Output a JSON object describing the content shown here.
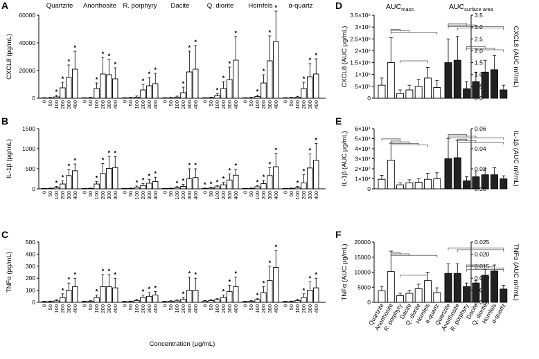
{
  "figure": {
    "concentration_axis_label": "Concentration (μg/mL)",
    "auc_mass_label": "AUC",
    "auc_mass_sub": "mass",
    "auc_area_label": "AUC",
    "auc_area_sub": "surface area"
  },
  "chart_data": [
    {
      "panel": "A",
      "type": "bar",
      "ylabel": "CXCL8 (pg/mL)",
      "ylim": [
        0,
        60000
      ],
      "yticks": [
        "0",
        "20000",
        "40000",
        "60000"
      ],
      "ytick_values": [
        0,
        20000,
        40000,
        60000
      ],
      "concentrations": [
        "0",
        "50",
        "100",
        "200",
        "300",
        "400"
      ],
      "groups": [
        {
          "name": "Quartzite",
          "values": [
            200,
            300,
            1000,
            7500,
            15000,
            21000
          ],
          "errors": [
            200,
            300,
            1000,
            4000,
            9000,
            13000
          ],
          "stars": [
            false,
            false,
            true,
            true,
            true,
            true
          ]
        },
        {
          "name": "Anorthosite",
          "values": [
            200,
            300,
            7000,
            17500,
            17000,
            14000
          ],
          "errors": [
            200,
            300,
            4000,
            12000,
            11000,
            8000
          ],
          "stars": [
            false,
            false,
            true,
            true,
            true,
            true
          ]
        },
        {
          "name": "R. porphyry",
          "values": [
            200,
            300,
            800,
            6000,
            9000,
            10500
          ],
          "errors": [
            200,
            300,
            800,
            4000,
            6000,
            7500
          ],
          "stars": [
            false,
            false,
            false,
            true,
            true,
            true
          ]
        },
        {
          "name": "Dacite",
          "values": [
            200,
            300,
            800,
            4000,
            19000,
            21000
          ],
          "errors": [
            200,
            300,
            700,
            4000,
            15000,
            17000
          ],
          "stars": [
            false,
            false,
            false,
            true,
            true,
            true
          ]
        },
        {
          "name": "Q. diorite",
          "values": [
            200,
            400,
            1800,
            7000,
            13500,
            27500
          ],
          "errors": [
            200,
            300,
            1500,
            5000,
            9000,
            17000
          ],
          "stars": [
            false,
            false,
            true,
            true,
            true,
            true
          ]
        },
        {
          "name": "Hornfels",
          "values": [
            200,
            300,
            1200,
            11000,
            27000,
            41000
          ],
          "errors": [
            200,
            300,
            1000,
            6000,
            18000,
            22000
          ],
          "stars": [
            false,
            false,
            true,
            true,
            true,
            true
          ]
        },
        {
          "name": "α-quartz",
          "values": [
            200,
            300,
            800,
            7000,
            15500,
            17500
          ],
          "errors": [
            200,
            300,
            600,
            4500,
            9500,
            11000
          ],
          "stars": [
            false,
            false,
            false,
            true,
            true,
            true
          ]
        }
      ]
    },
    {
      "panel": "B",
      "type": "bar",
      "ylabel": "IL-1β (pg/mL)",
      "ylim": [
        0,
        1500
      ],
      "yticks": [
        "0",
        "500",
        "1000",
        "1500"
      ],
      "ytick_values": [
        0,
        500,
        1000,
        1500
      ],
      "concentrations": [
        "0",
        "50",
        "100",
        "200",
        "300",
        "400"
      ],
      "groups": [
        {
          "name": "Quartzite",
          "values": [
            5,
            10,
            30,
            120,
            330,
            450
          ],
          "errors": [
            5,
            10,
            30,
            80,
            150,
            170
          ],
          "stars": [
            false,
            false,
            true,
            true,
            true,
            true
          ]
        },
        {
          "name": "Anorthosite",
          "values": [
            5,
            10,
            120,
            380,
            510,
            530
          ],
          "errors": [
            5,
            10,
            60,
            250,
            300,
            270
          ],
          "stars": [
            false,
            false,
            true,
            true,
            true,
            true
          ]
        },
        {
          "name": "R. porphyry",
          "values": [
            5,
            10,
            40,
            80,
            140,
            180
          ],
          "errors": [
            5,
            10,
            30,
            50,
            90,
            110
          ],
          "stars": [
            false,
            false,
            true,
            true,
            true,
            true
          ]
        },
        {
          "name": "Dacite",
          "values": [
            5,
            10,
            30,
            60,
            250,
            280
          ],
          "errors": [
            5,
            10,
            25,
            50,
            250,
            220
          ],
          "stars": [
            false,
            false,
            true,
            true,
            true,
            true
          ]
        },
        {
          "name": "Q. diorite",
          "values": [
            10,
            20,
            50,
            100,
            220,
            340
          ],
          "errors": [
            10,
            15,
            30,
            60,
            150,
            150
          ],
          "stars": [
            true,
            true,
            true,
            true,
            true,
            true
          ]
        },
        {
          "name": "Hornfels",
          "values": [
            5,
            10,
            50,
            130,
            330,
            550
          ],
          "errors": [
            5,
            10,
            30,
            80,
            200,
            330
          ],
          "stars": [
            false,
            false,
            true,
            true,
            true,
            true
          ]
        },
        {
          "name": "α-quartz",
          "values": [
            5,
            10,
            30,
            150,
            520,
            710
          ],
          "errors": [
            5,
            10,
            30,
            200,
            350,
            420
          ],
          "stars": [
            false,
            false,
            true,
            true,
            true,
            true
          ]
        }
      ]
    },
    {
      "panel": "C",
      "type": "bar",
      "ylabel": "TNFα (pg/mL)",
      "ylim": [
        0,
        500
      ],
      "yticks": [
        "0",
        "100",
        "200",
        "300",
        "400",
        "500"
      ],
      "ytick_values": [
        0,
        100,
        200,
        300,
        400,
        500
      ],
      "concentrations": [
        "0",
        "50",
        "100",
        "200",
        "300",
        "400"
      ],
      "groups": [
        {
          "name": "Quartzite",
          "values": [
            5,
            6,
            12,
            40,
            100,
            130
          ],
          "errors": [
            3,
            4,
            10,
            30,
            60,
            70
          ],
          "stars": [
            false,
            false,
            false,
            true,
            true,
            true
          ]
        },
        {
          "name": "Anorthosite",
          "values": [
            6,
            8,
            40,
            130,
            130,
            120
          ],
          "errors": [
            4,
            6,
            20,
            100,
            100,
            80
          ],
          "stars": [
            false,
            false,
            true,
            true,
            true,
            true
          ]
        },
        {
          "name": "R. porphyry",
          "values": [
            5,
            6,
            15,
            40,
            50,
            60
          ],
          "errors": [
            3,
            4,
            10,
            20,
            30,
            30
          ],
          "stars": [
            false,
            false,
            false,
            true,
            true,
            true
          ]
        },
        {
          "name": "Dacite",
          "values": [
            5,
            8,
            12,
            25,
            100,
            100
          ],
          "errors": [
            3,
            5,
            8,
            15,
            110,
            100
          ],
          "stars": [
            false,
            false,
            false,
            true,
            true,
            true
          ]
        },
        {
          "name": "Q. diorite",
          "values": [
            10,
            15,
            20,
            40,
            90,
            130
          ],
          "errors": [
            5,
            8,
            10,
            20,
            50,
            80
          ],
          "stars": [
            false,
            false,
            false,
            true,
            true,
            true
          ]
        },
        {
          "name": "Hornfels",
          "values": [
            5,
            8,
            20,
            80,
            180,
            290
          ],
          "errors": [
            3,
            6,
            10,
            50,
            120,
            140
          ],
          "stars": [
            false,
            false,
            true,
            true,
            true,
            true
          ]
        },
        {
          "name": "α-quartz",
          "values": [
            5,
            6,
            15,
            40,
            100,
            120
          ],
          "errors": [
            3,
            4,
            10,
            30,
            70,
            80
          ],
          "stars": [
            false,
            false,
            false,
            true,
            true,
            true
          ]
        }
      ]
    },
    {
      "panel": "D",
      "type": "bar",
      "ylabel_left": "CXCL8 (AUC μg/mL)",
      "ylabel_right": "CXCL8 (AUC m²/mL)",
      "ylim_left": [
        0,
        3500000
      ],
      "ylim_right": [
        0,
        3.5
      ],
      "yticks_left": [
        "0",
        "5×10⁵",
        "1×10⁶",
        "1.5×10⁶",
        "2×10⁶",
        "2.5×10⁶",
        "3×10⁶",
        "3.5×10⁶"
      ],
      "ytick_values_left": [
        0,
        500000,
        1000000,
        1500000,
        2000000,
        2500000,
        3000000,
        3500000
      ],
      "yticks_right": [
        "0.0",
        "0.5",
        "1.0",
        "1.5",
        "2.0",
        "2.5",
        "3.0",
        "3.5"
      ],
      "ytick_values_right": [
        0,
        0.5,
        1.0,
        1.5,
        2.0,
        2.5,
        3.0,
        3.5
      ],
      "mass": {
        "values": [
          550000,
          1500000,
          200000,
          350000,
          500000,
          850000,
          450000
        ],
        "errors": [
          300000,
          1050000,
          150000,
          200000,
          300000,
          450000,
          300000
        ]
      },
      "area": {
        "values": [
          1.5,
          1.6,
          0.4,
          0.7,
          1.1,
          1.2,
          0.35
        ],
        "errors": [
          1.0,
          1.0,
          0.3,
          0.4,
          0.5,
          0.6,
          0.2
        ]
      }
    },
    {
      "panel": "E",
      "type": "bar",
      "ylabel_left": "IL-1β (AUC μg/mL)",
      "ylabel_right": "IL-1β (AUC m²/mL)",
      "ylim_left": [
        0,
        60000
      ],
      "ylim_right": [
        0,
        0.06
      ],
      "yticks_left": [
        "0",
        "1×10⁴",
        "2×10⁴",
        "3×10⁴",
        "4×10⁴",
        "5×10⁴",
        "6×10⁴"
      ],
      "ytick_values_left": [
        0,
        10000,
        20000,
        30000,
        40000,
        50000,
        60000
      ],
      "yticks_right": [
        "0.00",
        "0.02",
        "0.04",
        "0.06"
      ],
      "ytick_values_right": [
        0,
        0.02,
        0.04,
        0.06
      ],
      "mass": {
        "values": [
          9500,
          28500,
          4000,
          6000,
          6500,
          9500,
          10000
        ],
        "errors": [
          4000,
          17000,
          2000,
          3000,
          3500,
          6000,
          6000
        ]
      },
      "area": {
        "values": [
          0.03,
          0.031,
          0.008,
          0.012,
          0.014,
          0.014,
          0.01
        ],
        "errors": [
          0.02,
          0.017,
          0.004,
          0.005,
          0.006,
          0.007,
          0.003
        ]
      }
    },
    {
      "panel": "F",
      "type": "bar",
      "ylabel_left": "TNFα (AUC μg/mL)",
      "ylabel_right": "TNFα (AUC m²/mL)",
      "ylim_left": [
        0,
        20000
      ],
      "ylim_right": [
        0,
        0.025
      ],
      "yticks_left": [
        "0",
        "5000",
        "10000",
        "15000",
        "20000"
      ],
      "ytick_values_left": [
        0,
        5000,
        10000,
        15000,
        20000
      ],
      "yticks_right": [
        "0.000",
        "0.005",
        "0.010",
        "0.015",
        "0.020",
        "0.025"
      ],
      "ytick_values_right": [
        0,
        0.005,
        0.01,
        0.015,
        0.02,
        0.025
      ],
      "mass": {
        "values": [
          3800,
          10200,
          2200,
          3000,
          4500,
          7200,
          3200
        ],
        "errors": [
          1500,
          6800,
          800,
          1000,
          1500,
          2800,
          1600
        ]
      },
      "area": {
        "values": [
          0.012,
          0.012,
          0.0065,
          0.008,
          0.0112,
          0.013,
          0.0055
        ],
        "errors": [
          0.004,
          0.004,
          0.0015,
          0.001,
          0.0025,
          0.0025,
          0.0015
        ]
      }
    }
  ],
  "auc_categories": [
    "Quartzite",
    "Anorthosite",
    "R. porphyry",
    "Dacite",
    "Q. diorite",
    "Hornfels",
    "α-quartz"
  ]
}
